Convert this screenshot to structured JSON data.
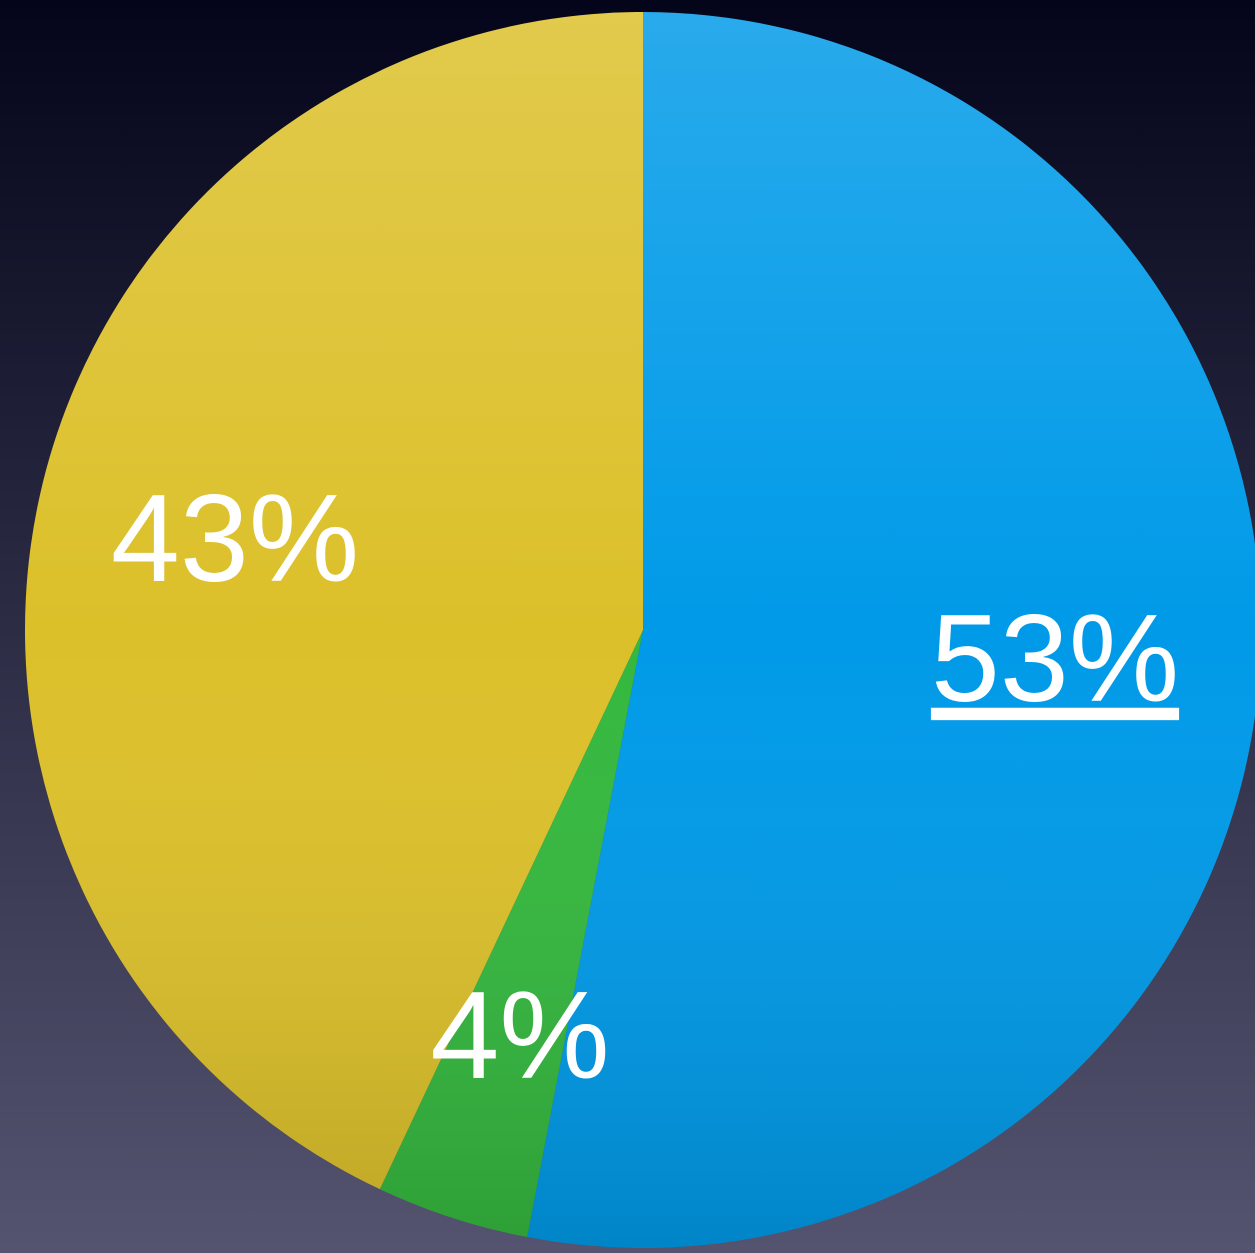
{
  "chart_data": {
    "type": "pie",
    "values": [
      53,
      4,
      43
    ],
    "value_labels": [
      "53%",
      "4%",
      "43%"
    ],
    "colors": [
      "#009ae8",
      "#34b83e",
      "#dcc02a"
    ]
  }
}
